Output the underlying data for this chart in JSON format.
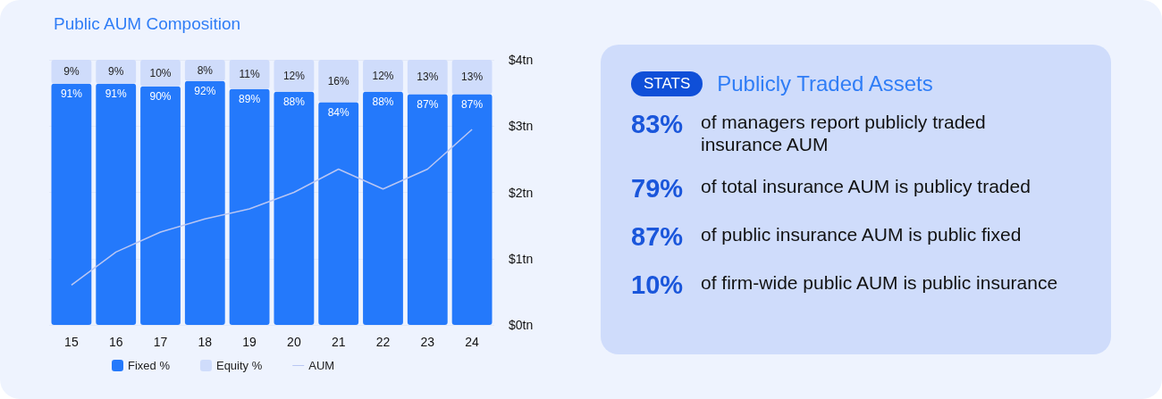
{
  "chart_data": [
    {
      "type": "bar",
      "title": "Public AUM Composition",
      "categories": [
        "15",
        "16",
        "17",
        "18",
        "19",
        "20",
        "21",
        "22",
        "23",
        "24"
      ],
      "stacked": true,
      "series": [
        {
          "name": "Fixed %",
          "color": "#2479fb",
          "values": [
            91,
            91,
            90,
            92,
            89,
            88,
            84,
            88,
            87,
            87
          ],
          "value_labels": [
            "91%",
            "91%",
            "90%",
            "92%",
            "89%",
            "88%",
            "84%",
            "88%",
            "87%",
            "87%"
          ]
        },
        {
          "name": "Equity %",
          "color": "#cfdcfb",
          "values": [
            9,
            9,
            10,
            8,
            11,
            12,
            16,
            12,
            13,
            13
          ],
          "value_labels": [
            "9%",
            "9%",
            "10%",
            "8%",
            "11%",
            "12%",
            "16%",
            "12%",
            "13%",
            "13%"
          ]
        },
        {
          "name": "AUM",
          "type": "line",
          "axis": "y2",
          "color": "#b9c6f3",
          "values": [
            0.6,
            1.1,
            1.4,
            1.6,
            1.75,
            2.0,
            2.35,
            2.05,
            2.35,
            2.95
          ]
        }
      ],
      "y2lim": [
        0,
        4
      ],
      "y2ticks": [
        {
          "value": 0,
          "label": "$0tn"
        },
        {
          "value": 1,
          "label": "$1tn"
        },
        {
          "value": 2,
          "label": "$2tn"
        },
        {
          "value": 3,
          "label": "$3tn"
        },
        {
          "value": 4,
          "label": "$4tn"
        }
      ],
      "grid": "y",
      "legend": "bottom",
      "marker": "none",
      "tick_labels": "x"
    },
    {
      "type": "other",
      "title": "Publicly Traded Assets",
      "subtitle": "STATS",
      "annotations": [
        "83%",
        "of managers report publicly traded insurance AUM",
        "79%",
        "of total insurance AUM is publicy traded",
        "87%",
        "of public insurance AUM is public fixed",
        "10%",
        "of firm-wide public AUM is public insurance"
      ]
    }
  ]
}
